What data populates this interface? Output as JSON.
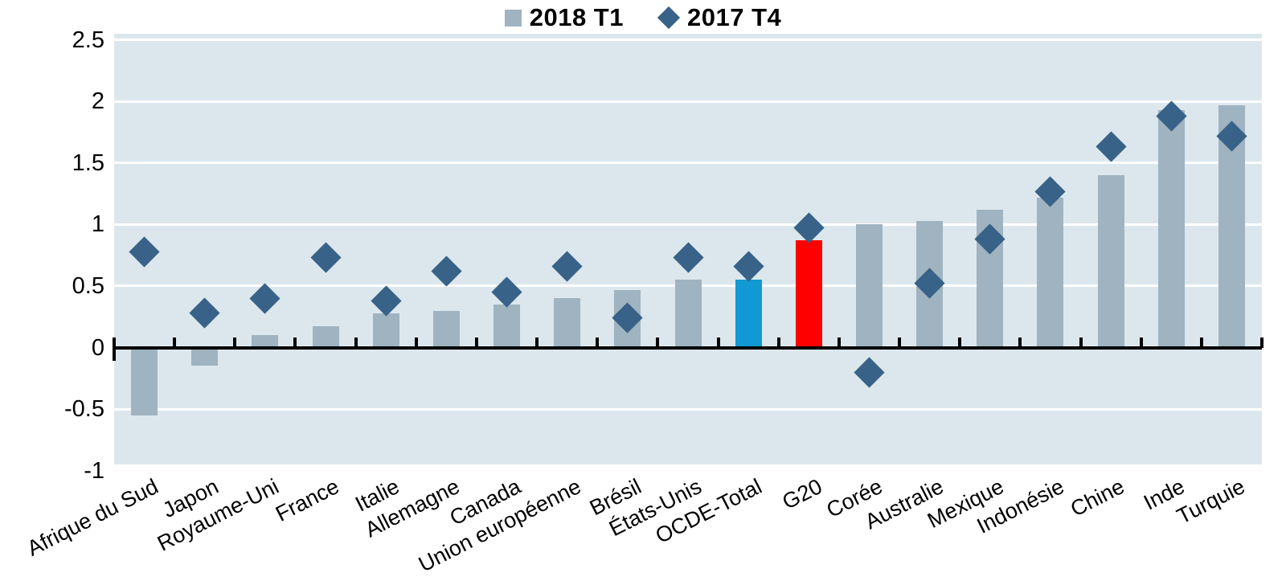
{
  "chart_data": {
    "type": "bar",
    "title": "",
    "xlabel": "",
    "ylabel": "",
    "categories": [
      "Afrique du Sud",
      "Japon",
      "Royaume-Uni",
      "France",
      "Italie",
      "Allemagne",
      "Canada",
      "Union européenne",
      "Brésil",
      "États-Unis",
      "OCDE-Total",
      "G20",
      "Corée",
      "Australie",
      "Mexique",
      "Indonésie",
      "Chine",
      "Inde",
      "Turquie"
    ],
    "series": [
      {
        "name": "2018 T1",
        "type": "bar",
        "marker": "square",
        "values": [
          -0.55,
          -0.15,
          0.1,
          0.17,
          0.28,
          0.3,
          0.35,
          0.4,
          0.47,
          0.55,
          0.55,
          0.87,
          1.0,
          1.03,
          1.12,
          1.22,
          1.4,
          1.93,
          1.97
        ],
        "default_color": "#9fb3c0",
        "highlight_colors": {
          "OCDE-Total": "#1099d2",
          "G20": "#fe0000"
        }
      },
      {
        "name": "2017 T4",
        "type": "scatter",
        "marker": "diamond",
        "values": [
          0.78,
          0.28,
          0.4,
          0.73,
          0.38,
          0.62,
          0.45,
          0.66,
          0.24,
          0.73,
          0.66,
          0.97,
          -0.2,
          0.52,
          0.88,
          1.27,
          1.63,
          1.88,
          1.72
        ],
        "color": "#386288"
      }
    ],
    "ylim": [
      -1,
      2.5
    ],
    "yticks": [
      2.5,
      2,
      1.5,
      1,
      0.5,
      0,
      -0.5,
      -1
    ],
    "ytick_labels": [
      "2.5",
      "2",
      "1.5",
      "1",
      "0.5",
      "0",
      "-0.5",
      "-1"
    ],
    "gridline_values": [
      2.5,
      2,
      1.5,
      1,
      0.5,
      -0.5
    ],
    "grid": "horizontal-white-on",
    "legend_position": "top-center",
    "plot_background": "#dce7ed",
    "gridline_color": "#ffffff",
    "axis_color": "#000000",
    "x_label_rotation_deg": -27
  }
}
